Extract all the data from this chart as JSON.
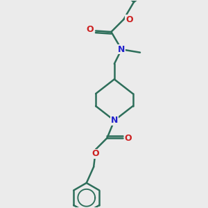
{
  "bg_color": "#ebebeb",
  "bond_color": "#2d6e5a",
  "N_color": "#2020cc",
  "O_color": "#cc2020",
  "lw": 1.8,
  "fig_w": 3.0,
  "fig_h": 3.0,
  "dpi": 100,
  "xlim": [
    0,
    10
  ],
  "ylim": [
    0,
    10
  ]
}
